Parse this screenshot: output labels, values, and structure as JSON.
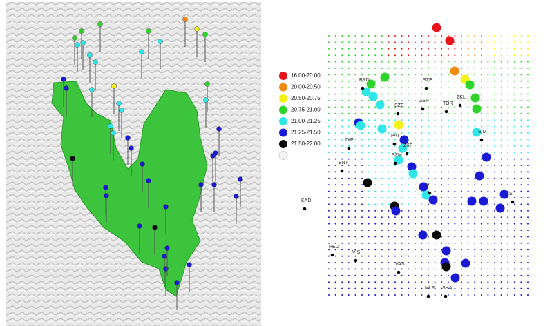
{
  "legend": [
    {
      "label": "16.00-20.00",
      "color": "#e8141b"
    },
    {
      "label": "20.00-20.50",
      "color": "#f08a12"
    },
    {
      "label": "20.50-20.75",
      "color": "#f5f212"
    },
    {
      "label": "20.75-21.00",
      "color": "#2fd42a"
    },
    {
      "label": "21.00-21.25",
      "color": "#2ee6e6"
    },
    {
      "label": "21.25-21.50",
      "color": "#1a1ad6"
    },
    {
      "label": "21.50-22.00",
      "color": "#0a0a0a"
    },
    {
      "label": "",
      "color": "#f2f2f2"
    }
  ],
  "stations": [
    "BRD",
    "SZE",
    "ZSP",
    "TOR",
    "ZKL",
    "SZE",
    "PAT",
    "SIM",
    "DIP",
    "ZKF",
    "SZM",
    "BNT",
    "P",
    "S",
    "KAD",
    "HED",
    "VIS",
    "VAS",
    "MLF",
    "SHA"
  ]
}
